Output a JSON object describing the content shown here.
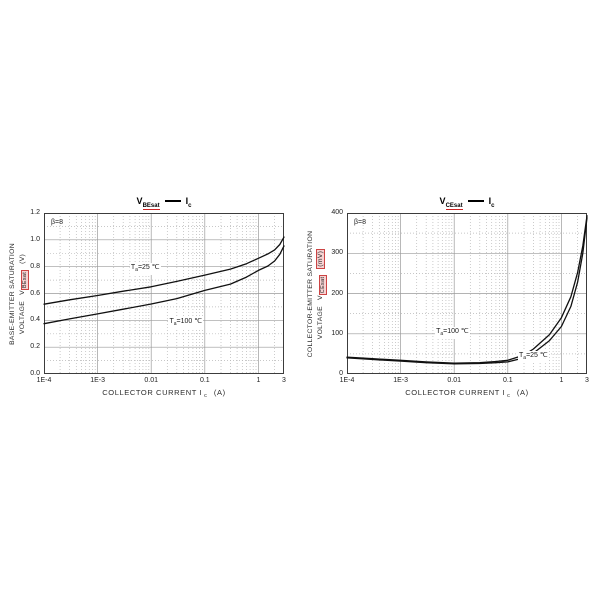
{
  "page": {
    "background": "#ffffff"
  },
  "colors": {
    "curve": "#111111",
    "grid_major": "#9a9a9a",
    "grid_minor": "#b6b6b6",
    "frame": "#3c3c3c",
    "link_red": "#cc2222"
  },
  "chart_data": [
    {
      "type": "line",
      "title": {
        "symbol": "V",
        "symbol_sub": "BEsat",
        "current": "I",
        "current_sub": "c"
      },
      "beta": "β=8",
      "xlabel": {
        "text": "COLLECTOR CURRENT I",
        "sub": "c",
        "unit": "(A)"
      },
      "ylabel": {
        "line1": "BASE-EMITTER SATURATION",
        "line2": "VOLTAGE",
        "symbol": "V",
        "symbol_sub": "BEsat",
        "unit": "(V)"
      },
      "x_scale": "log",
      "xlim": [
        0.0001,
        3
      ],
      "ylim": [
        0,
        1.2
      ],
      "y_minor_step": 0.1,
      "grid": {
        "minor": "dotted",
        "major": "solid"
      },
      "legend_position": "none",
      "x_ticks": [
        {
          "v": 0.0001,
          "label": "1E-4"
        },
        {
          "v": 0.001,
          "label": "1E-3"
        },
        {
          "v": 0.01,
          "label": "0.01"
        },
        {
          "v": 0.1,
          "label": "0.1"
        },
        {
          "v": 1,
          "label": "1"
        },
        {
          "v": 3,
          "label": "3"
        }
      ],
      "y_ticks": [
        {
          "v": 0,
          "label": "0.0"
        },
        {
          "v": 0.2,
          "label": "0.2"
        },
        {
          "v": 0.4,
          "label": "0.4"
        },
        {
          "v": 0.6,
          "label": "0.6"
        },
        {
          "v": 0.8,
          "label": "0.8"
        },
        {
          "v": 1.0,
          "label": "1.0"
        },
        {
          "v": 1.2,
          "label": "1.2"
        }
      ],
      "series": [
        {
          "name": "Ta=25℃",
          "points": [
            [
              0.0001,
              0.52
            ],
            [
              0.0003,
              0.553
            ],
            [
              0.001,
              0.585
            ],
            [
              0.003,
              0.617
            ],
            [
              0.01,
              0.65
            ],
            [
              0.03,
              0.69
            ],
            [
              0.1,
              0.737
            ],
            [
              0.3,
              0.782
            ],
            [
              0.6,
              0.822
            ],
            [
              1,
              0.862
            ],
            [
              1.5,
              0.895
            ],
            [
              2,
              0.925
            ],
            [
              2.5,
              0.965
            ],
            [
              3,
              1.02
            ]
          ]
        },
        {
          "name": "Ta=100℃",
          "points": [
            [
              0.0001,
              0.375
            ],
            [
              0.0003,
              0.411
            ],
            [
              0.001,
              0.448
            ],
            [
              0.003,
              0.483
            ],
            [
              0.01,
              0.522
            ],
            [
              0.03,
              0.562
            ],
            [
              0.1,
              0.623
            ],
            [
              0.3,
              0.67
            ],
            [
              0.6,
              0.722
            ],
            [
              1,
              0.772
            ],
            [
              1.5,
              0.805
            ],
            [
              2,
              0.842
            ],
            [
              2.5,
              0.892
            ],
            [
              3,
              0.955
            ]
          ]
        }
      ],
      "annotations": [
        {
          "pre": "T",
          "sub": "a",
          "post": "=25 ℃",
          "x": 0.004,
          "y": 0.8
        },
        {
          "pre": "T",
          "sub": "a",
          "post": "=100 ℃",
          "x": 0.021,
          "y": 0.395
        }
      ]
    },
    {
      "type": "line",
      "title": {
        "symbol": "V",
        "symbol_sub": "CEsat",
        "current": "I",
        "current_sub": "c"
      },
      "beta": "β=8",
      "xlabel": {
        "text": "COLLECTOR CURRENT I",
        "sub": "c",
        "unit": "(A)"
      },
      "ylabel": {
        "line1": "COLLECTOR-EMITTER SATURATION",
        "line2": "VOLTAGE",
        "symbol": "V",
        "symbol_sub": "CEsat",
        "unit": "(mV)"
      },
      "x_scale": "log",
      "xlim": [
        0.0001,
        3
      ],
      "ylim": [
        0,
        400
      ],
      "y_minor_step": 50,
      "grid": {
        "minor": "dotted",
        "major": "solid"
      },
      "legend_position": "none",
      "x_ticks": [
        {
          "v": 0.0001,
          "label": "1E-4"
        },
        {
          "v": 0.001,
          "label": "1E-3"
        },
        {
          "v": 0.01,
          "label": "0.01"
        },
        {
          "v": 0.1,
          "label": "0.1"
        },
        {
          "v": 1,
          "label": "1"
        },
        {
          "v": 3,
          "label": "3"
        }
      ],
      "y_ticks": [
        {
          "v": 0,
          "label": "0"
        },
        {
          "v": 100,
          "label": "100"
        },
        {
          "v": 200,
          "label": "200"
        },
        {
          "v": 300,
          "label": "300"
        },
        {
          "v": 400,
          "label": "400"
        }
      ],
      "series": [
        {
          "name": "Ta=100℃",
          "points": [
            [
              0.0001,
              42
            ],
            [
              0.0003,
              38
            ],
            [
              0.001,
              34
            ],
            [
              0.003,
              30
            ],
            [
              0.01,
              27
            ],
            [
              0.03,
              28
            ],
            [
              0.06,
              31
            ],
            [
              0.1,
              34
            ],
            [
              0.2,
              47
            ],
            [
              0.3,
              62
            ],
            [
              0.6,
              98
            ],
            [
              1,
              140
            ],
            [
              1.5,
              192
            ],
            [
              2,
              252
            ],
            [
              2.5,
              318
            ],
            [
              3,
              393
            ]
          ]
        },
        {
          "name": "Ta=25℃",
          "points": [
            [
              0.0001,
              40
            ],
            [
              0.0003,
              36
            ],
            [
              0.001,
              32
            ],
            [
              0.003,
              28
            ],
            [
              0.01,
              25
            ],
            [
              0.03,
              26
            ],
            [
              0.06,
              28
            ],
            [
              0.1,
              30
            ],
            [
              0.2,
              40
            ],
            [
              0.3,
              52
            ],
            [
              0.6,
              83
            ],
            [
              1,
              118
            ],
            [
              1.5,
              168
            ],
            [
              2,
              228
            ],
            [
              2.5,
              300
            ],
            [
              3,
              388
            ]
          ]
        }
      ],
      "annotations": [
        {
          "pre": "T",
          "sub": "a",
          "post": "=100 ℃",
          "x": 0.0044,
          "y": 107
        },
        {
          "pre": "T",
          "sub": "a",
          "post": "=25 ℃",
          "x": 0.155,
          "y": 47
        }
      ]
    }
  ]
}
